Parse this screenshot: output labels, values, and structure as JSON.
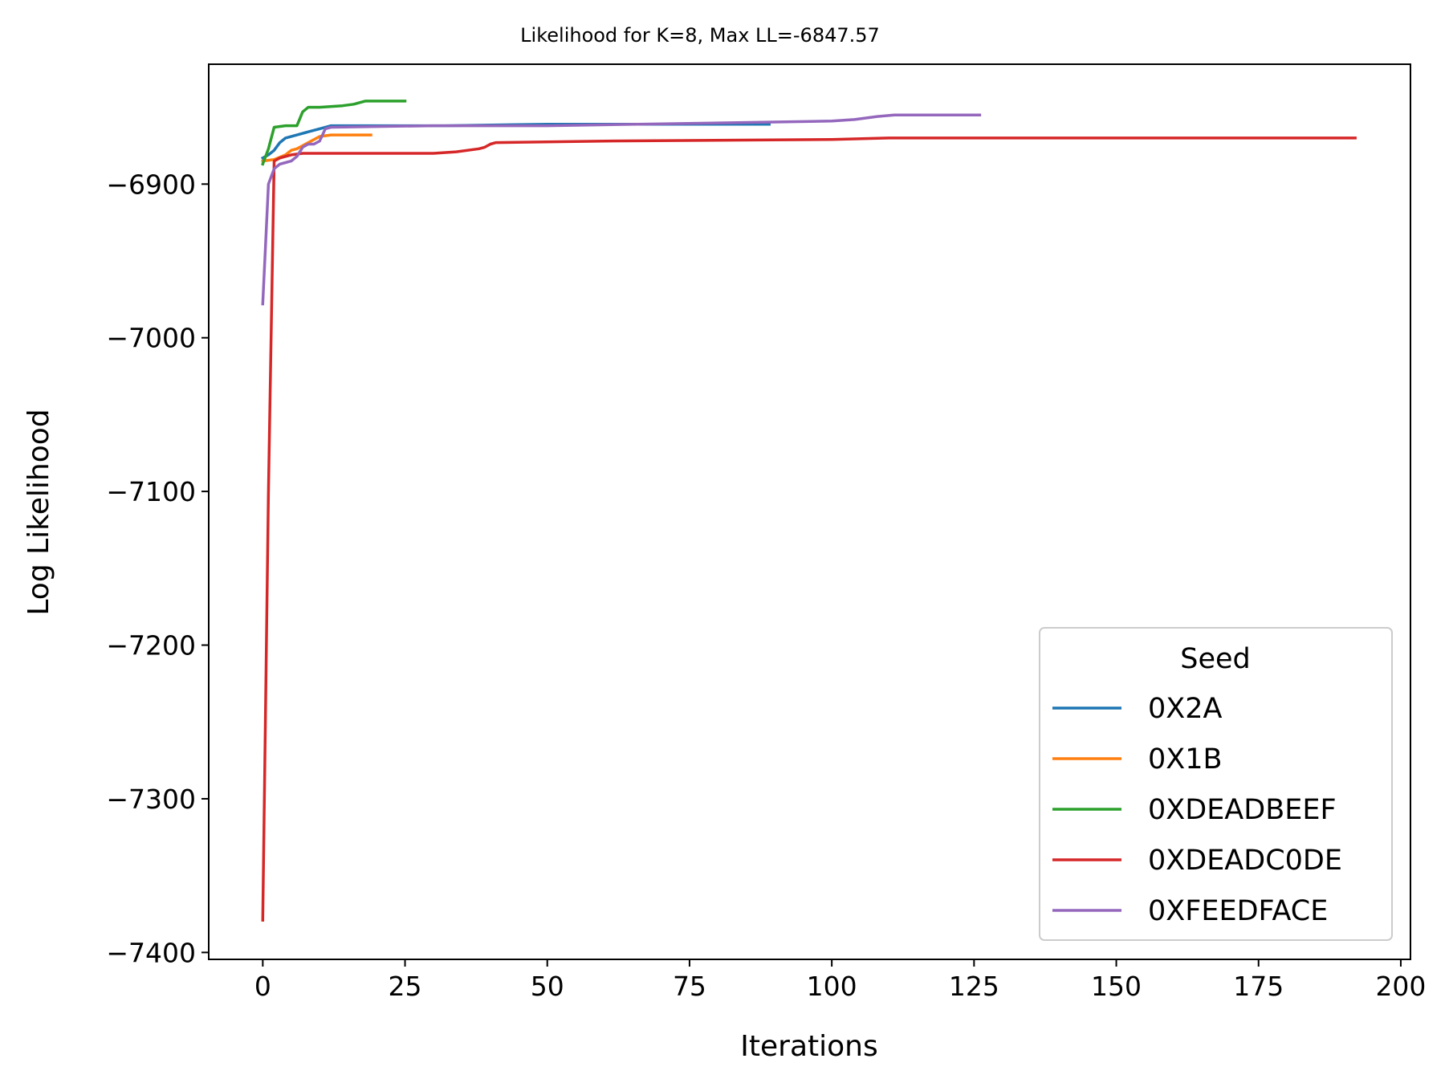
{
  "chart_data": {
    "type": "line",
    "title": "Likelihood for K=8,  Max LL=-6847.57",
    "xlabel": "Iterations",
    "ylabel": "Log Likelihood",
    "xlim": [
      -9.5,
      201.7
    ],
    "ylim": [
      -7404.5,
      -6822
    ],
    "xticks": [
      0,
      25,
      50,
      75,
      100,
      125,
      150,
      175,
      200
    ],
    "xtick_labels": [
      "0",
      "25",
      "50",
      "75",
      "100",
      "125",
      "150",
      "175",
      "200"
    ],
    "yticks": [
      -6900,
      -7000,
      -7100,
      -7200,
      -7300,
      -7400
    ],
    "ytick_labels": [
      "−6900",
      "−7000",
      "−7100",
      "−7200",
      "−7300",
      "−7400"
    ],
    "grid": false,
    "legend": {
      "title": "Seed",
      "position": "lower-right"
    },
    "series": [
      {
        "name": "0X2A",
        "color": "#1f77b4",
        "points": [
          [
            0,
            -6883
          ],
          [
            1,
            -6881
          ],
          [
            2,
            -6878
          ],
          [
            3,
            -6873
          ],
          [
            4,
            -6870
          ],
          [
            6,
            -6868
          ],
          [
            8,
            -6866
          ],
          [
            10,
            -6864
          ],
          [
            12,
            -6862
          ],
          [
            20,
            -6862
          ],
          [
            32,
            -6862
          ],
          [
            50,
            -6861
          ],
          [
            70,
            -6861
          ],
          [
            89,
            -6861
          ]
        ]
      },
      {
        "name": "0X1B",
        "color": "#ff7f0e",
        "points": [
          [
            0,
            -6885
          ],
          [
            2,
            -6884
          ],
          [
            4,
            -6881
          ],
          [
            5,
            -6878
          ],
          [
            6,
            -6877
          ],
          [
            8,
            -6873
          ],
          [
            10,
            -6869
          ],
          [
            12,
            -6868
          ],
          [
            15,
            -6868
          ],
          [
            19,
            -6868
          ]
        ]
      },
      {
        "name": "0XDEADBEEF",
        "color": "#2ca02c",
        "points": [
          [
            0,
            -6887
          ],
          [
            1,
            -6877
          ],
          [
            2,
            -6863
          ],
          [
            4,
            -6862
          ],
          [
            6,
            -6862
          ],
          [
            7,
            -6853
          ],
          [
            8,
            -6850
          ],
          [
            10,
            -6850
          ],
          [
            14,
            -6849
          ],
          [
            16,
            -6848
          ],
          [
            18,
            -6846
          ],
          [
            20,
            -6846
          ],
          [
            25,
            -6846
          ]
        ]
      },
      {
        "name": "0XDEADC0DE",
        "color": "#d62728",
        "points": [
          [
            0,
            -7379
          ],
          [
            1,
            -7100
          ],
          [
            2,
            -6885
          ],
          [
            3,
            -6883
          ],
          [
            5,
            -6881
          ],
          [
            7,
            -6880
          ],
          [
            15,
            -6880
          ],
          [
            30,
            -6880
          ],
          [
            34,
            -6879
          ],
          [
            38,
            -6877
          ],
          [
            39,
            -6876
          ],
          [
            40,
            -6874
          ],
          [
            41,
            -6873
          ],
          [
            60,
            -6872
          ],
          [
            100,
            -6871
          ],
          [
            110,
            -6870
          ],
          [
            150,
            -6870
          ],
          [
            192,
            -6870
          ]
        ]
      },
      {
        "name": "0XFEEDFACE",
        "color": "#9467bd",
        "points": [
          [
            0,
            -6978
          ],
          [
            1,
            -6900
          ],
          [
            2,
            -6890
          ],
          [
            3,
            -6887
          ],
          [
            4,
            -6886
          ],
          [
            5,
            -6885
          ],
          [
            6,
            -6882
          ],
          [
            7,
            -6876
          ],
          [
            8,
            -6874
          ],
          [
            9,
            -6874
          ],
          [
            10,
            -6872
          ],
          [
            11,
            -6864
          ],
          [
            12,
            -6863
          ],
          [
            30,
            -6862
          ],
          [
            50,
            -6862
          ],
          [
            100,
            -6859
          ],
          [
            104,
            -6858
          ],
          [
            108,
            -6856
          ],
          [
            111,
            -6855
          ],
          [
            126,
            -6855
          ]
        ]
      }
    ]
  }
}
